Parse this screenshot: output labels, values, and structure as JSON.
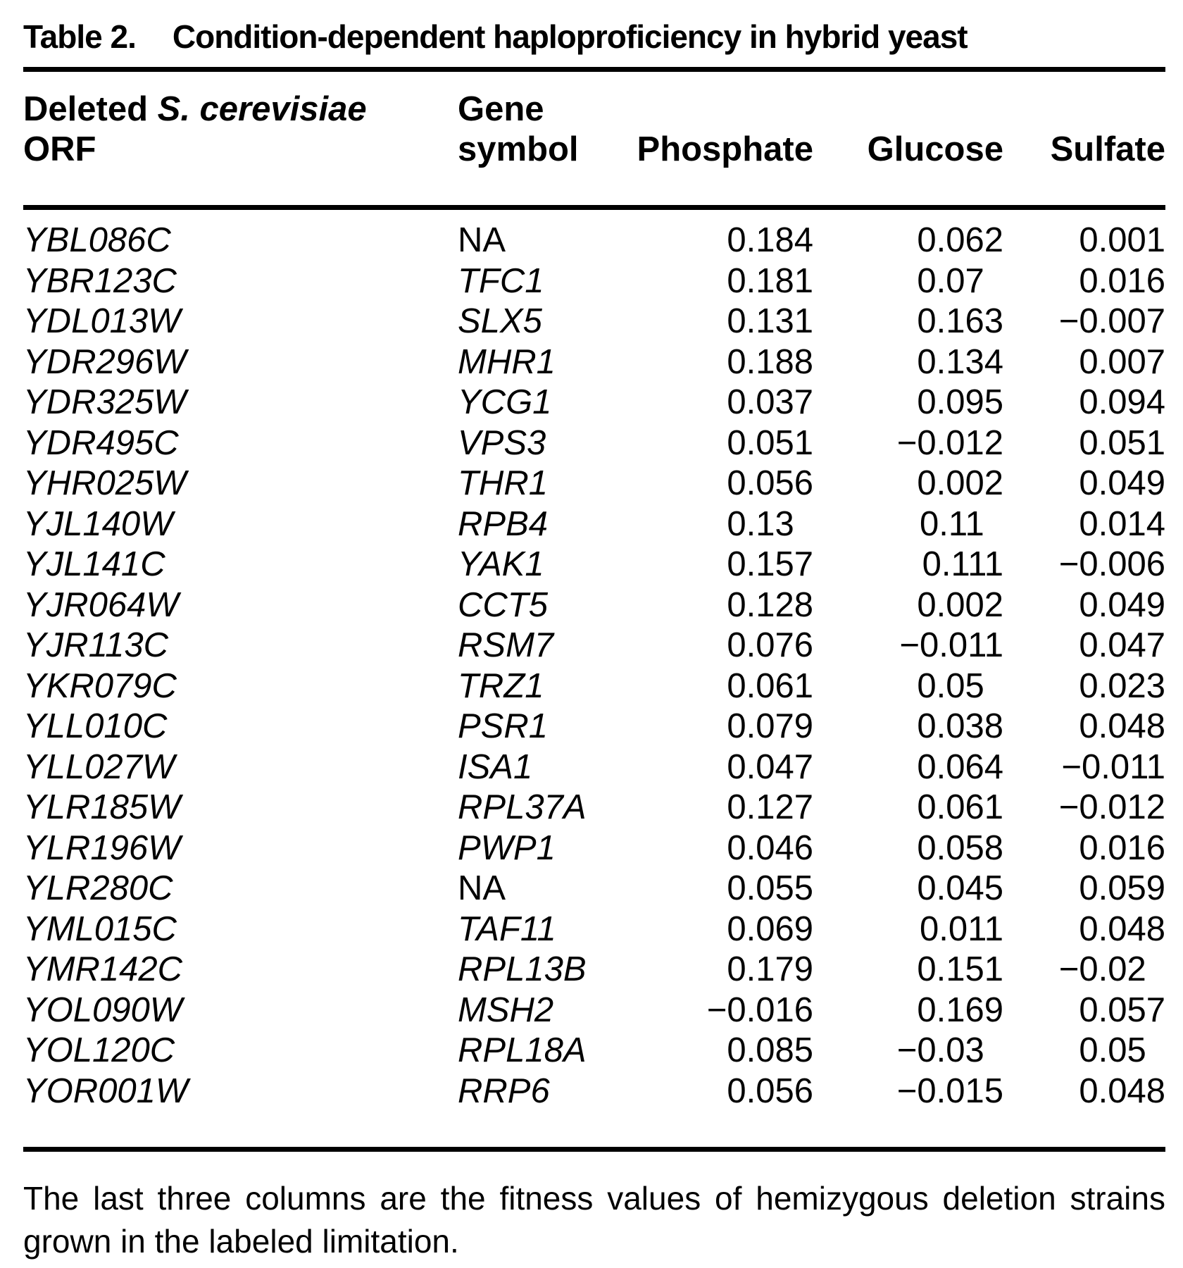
{
  "table": {
    "label": "Table 2.",
    "title": "Condition-dependent haploproficiency in hybrid yeast",
    "columns": {
      "orf_line1_prefix": "Deleted",
      "orf_line1_species": "S. cerevisiae",
      "orf_line2": "ORF",
      "gene_line1": "Gene",
      "gene_line2": "symbol",
      "phosphate": "Phosphate",
      "glucose": "Glucose",
      "sulfate": "Sulfate"
    },
    "rows": [
      {
        "orf": "YBL086C",
        "symbol": "NA",
        "symbol_na": true,
        "phosphate": "0.184",
        "glucose": "0.062",
        "sulfate": "0.001"
      },
      {
        "orf": "YBR123C",
        "symbol": "TFC1",
        "symbol_na": false,
        "phosphate": "0.181",
        "glucose": "0.07",
        "sulfate": "0.016"
      },
      {
        "orf": "YDL013W",
        "symbol": "SLX5",
        "symbol_na": false,
        "phosphate": "0.131",
        "glucose": "0.163",
        "sulfate": "−0.007"
      },
      {
        "orf": "YDR296W",
        "symbol": "MHR1",
        "symbol_na": false,
        "phosphate": "0.188",
        "glucose": "0.134",
        "sulfate": "0.007"
      },
      {
        "orf": "YDR325W",
        "symbol": "YCG1",
        "symbol_na": false,
        "phosphate": "0.037",
        "glucose": "0.095",
        "sulfate": "0.094"
      },
      {
        "orf": "YDR495C",
        "symbol": "VPS3",
        "symbol_na": false,
        "phosphate": "0.051",
        "glucose": "−0.012",
        "sulfate": "0.051"
      },
      {
        "orf": "YHR025W",
        "symbol": "THR1",
        "symbol_na": false,
        "phosphate": "0.056",
        "glucose": "0.002",
        "sulfate": "0.049"
      },
      {
        "orf": "YJL140W",
        "symbol": "RPB4",
        "symbol_na": false,
        "phosphate": "0.13",
        "glucose": "0.11",
        "sulfate": "0.014"
      },
      {
        "orf": "YJL141C",
        "symbol": "YAK1",
        "symbol_na": false,
        "phosphate": "0.157",
        "glucose": "0.111",
        "sulfate": "−0.006"
      },
      {
        "orf": "YJR064W",
        "symbol": "CCT5",
        "symbol_na": false,
        "phosphate": "0.128",
        "glucose": "0.002",
        "sulfate": "0.049"
      },
      {
        "orf": "YJR113C",
        "symbol": "RSM7",
        "symbol_na": false,
        "phosphate": "0.076",
        "glucose": "−0.011",
        "sulfate": "0.047"
      },
      {
        "orf": "YKR079C",
        "symbol": "TRZ1",
        "symbol_na": false,
        "phosphate": "0.061",
        "glucose": "0.05",
        "sulfate": "0.023"
      },
      {
        "orf": "YLL010C",
        "symbol": "PSR1",
        "symbol_na": false,
        "phosphate": "0.079",
        "glucose": "0.038",
        "sulfate": "0.048"
      },
      {
        "orf": "YLL027W",
        "symbol": "ISA1",
        "symbol_na": false,
        "phosphate": "0.047",
        "glucose": "0.064",
        "sulfate": "−0.011"
      },
      {
        "orf": "YLR185W",
        "symbol": "RPL37A",
        "symbol_na": false,
        "phosphate": "0.127",
        "glucose": "0.061",
        "sulfate": "−0.012"
      },
      {
        "orf": "YLR196W",
        "symbol": "PWP1",
        "symbol_na": false,
        "phosphate": "0.046",
        "glucose": "0.058",
        "sulfate": "0.016"
      },
      {
        "orf": "YLR280C",
        "symbol": "NA",
        "symbol_na": true,
        "phosphate": "0.055",
        "glucose": "0.045",
        "sulfate": "0.059"
      },
      {
        "orf": "YML015C",
        "symbol": "TAF11",
        "symbol_na": false,
        "phosphate": "0.069",
        "glucose": "0.011",
        "sulfate": "0.048"
      },
      {
        "orf": "YMR142C",
        "symbol": "RPL13B",
        "symbol_na": false,
        "phosphate": "0.179",
        "glucose": "0.151",
        "sulfate": "−0.02"
      },
      {
        "orf": "YOL090W",
        "symbol": "MSH2",
        "symbol_na": false,
        "phosphate": "−0.016",
        "glucose": "0.169",
        "sulfate": "0.057"
      },
      {
        "orf": "YOL120C",
        "symbol": "RPL18A",
        "symbol_na": false,
        "phosphate": "0.085",
        "glucose": "−0.03",
        "sulfate": "0.05"
      },
      {
        "orf": "YOR001W",
        "symbol": "RRP6",
        "symbol_na": false,
        "phosphate": "0.056",
        "glucose": "−0.015",
        "sulfate": "0.048"
      }
    ],
    "footnote": "The last three columns are the fitness values of hemizygous deletion strains grown in the labeled limitation."
  }
}
